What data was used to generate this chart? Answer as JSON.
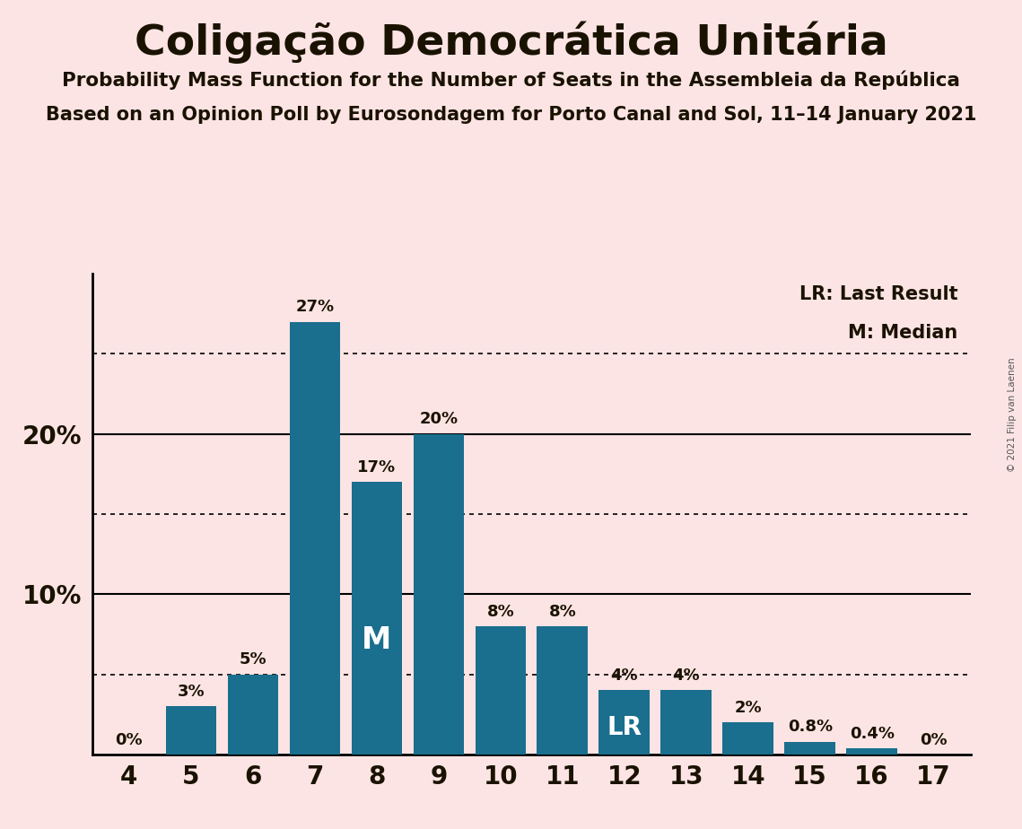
{
  "title": "Coligação Democrática Unitária",
  "subtitle1": "Probability Mass Function for the Number of Seats in the Assembleia da República",
  "subtitle2": "Based on an Opinion Poll by Eurosondagem for Porto Canal and Sol, 11–14 January 2021",
  "copyright": "© 2021 Filip van Laenen",
  "categories": [
    4,
    5,
    6,
    7,
    8,
    9,
    10,
    11,
    12,
    13,
    14,
    15,
    16,
    17
  ],
  "values": [
    0,
    3,
    5,
    27,
    17,
    20,
    8,
    8,
    4,
    4,
    2,
    0.8,
    0.4,
    0
  ],
  "bar_color": "#1a6e8e",
  "background_color": "#fce4e4",
  "text_color": "#1a1200",
  "bar_label_color": "#1a1200",
  "bar_label_inside_color": "#ffffff",
  "solid_gridlines": [
    10,
    20
  ],
  "dotted_gridlines": [
    5,
    15,
    25
  ],
  "median_bar": 8,
  "lr_bar": 12,
  "legend_lr": "LR: Last Result",
  "legend_m": "M: Median",
  "xlim": [
    3.4,
    17.6
  ],
  "ylim": [
    0,
    30
  ],
  "bar_width": 0.82
}
